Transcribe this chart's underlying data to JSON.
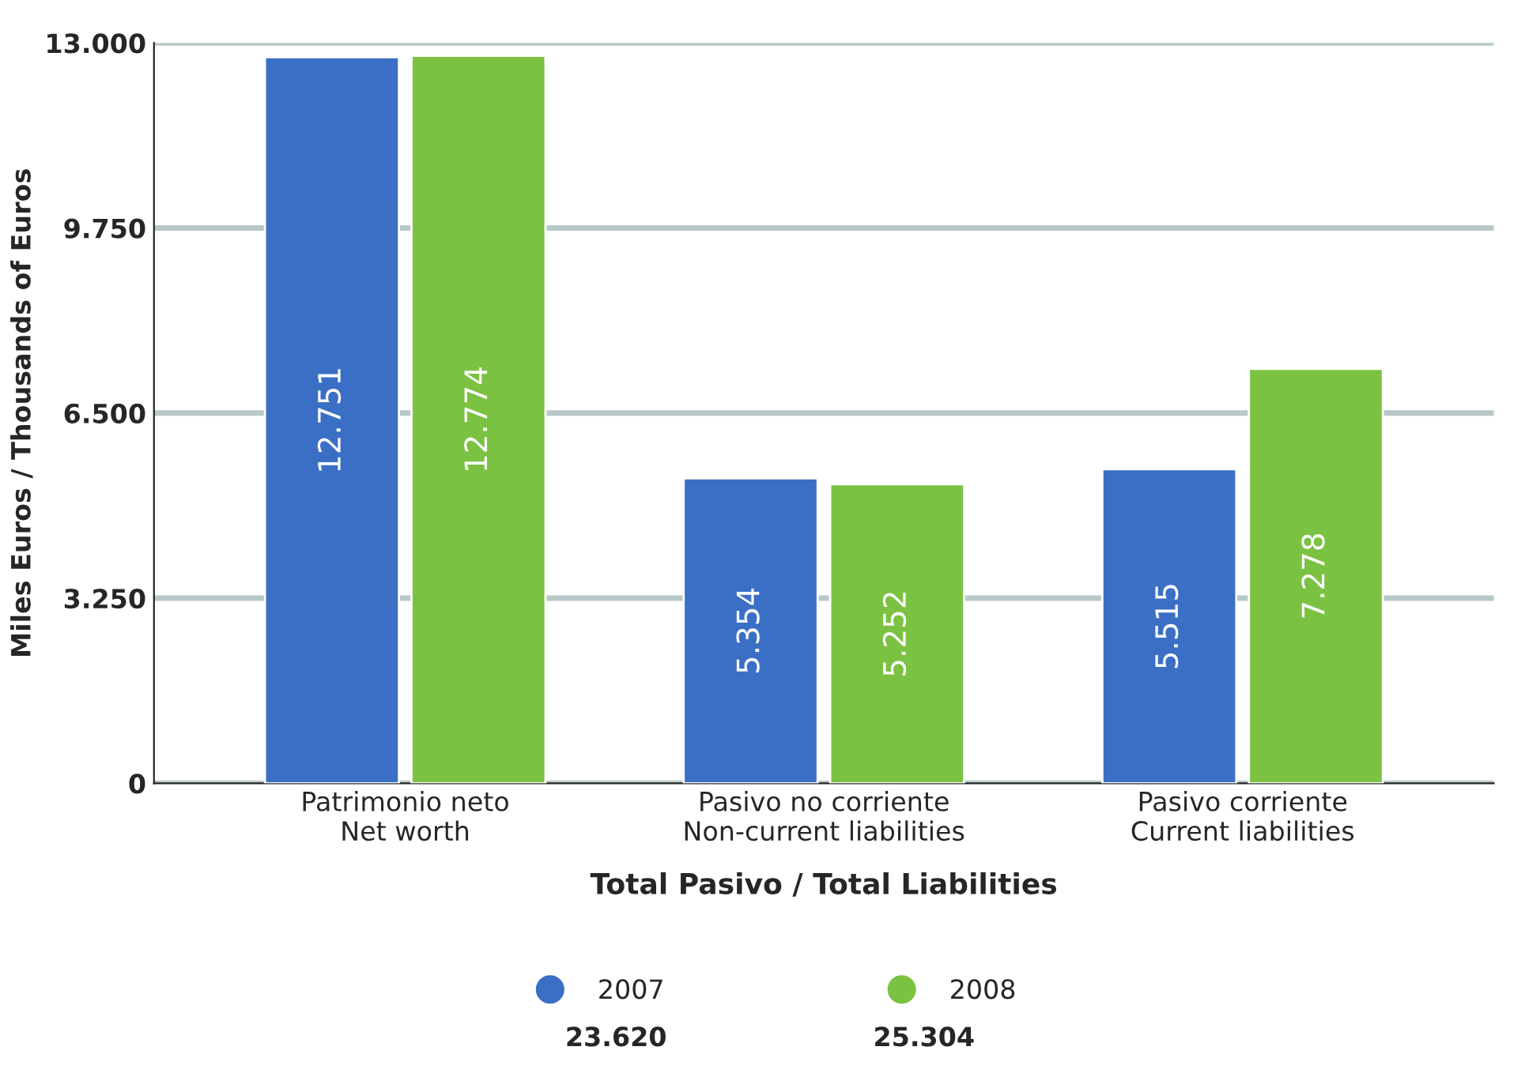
{
  "chart_data": {
    "type": "bar",
    "categories": [
      "Patrimonio neto\nNet worth",
      "Pasivo no corriente\nNon-current liabilities",
      "Pasivo corriente\nCurrent liabilities"
    ],
    "series": [
      {
        "name": "2007",
        "color": "#3b6fc6",
        "values": [
          12751,
          5354,
          5515
        ],
        "value_labels": [
          "12.751",
          "5.354",
          "5.515"
        ]
      },
      {
        "name": "2008",
        "color": "#7cc242",
        "values": [
          12774,
          5252,
          7278
        ],
        "value_labels": [
          "12.774",
          "5.252",
          "7.278"
        ]
      }
    ],
    "ylabel": "Miles Euros / Thousands of Euros",
    "xlabel": "Total Pasivo / Total Liabilities",
    "ylim": [
      0,
      13000
    ],
    "yticks": [
      {
        "value": 0,
        "label": "0"
      },
      {
        "value": 3250,
        "label": "3.250"
      },
      {
        "value": 6500,
        "label": "6.500"
      },
      {
        "value": 9750,
        "label": "9.750"
      },
      {
        "value": 13000,
        "label": "13.000"
      }
    ],
    "grid": "y",
    "legend": "bottom",
    "annotations": [
      "23.620",
      "25.304"
    ]
  }
}
